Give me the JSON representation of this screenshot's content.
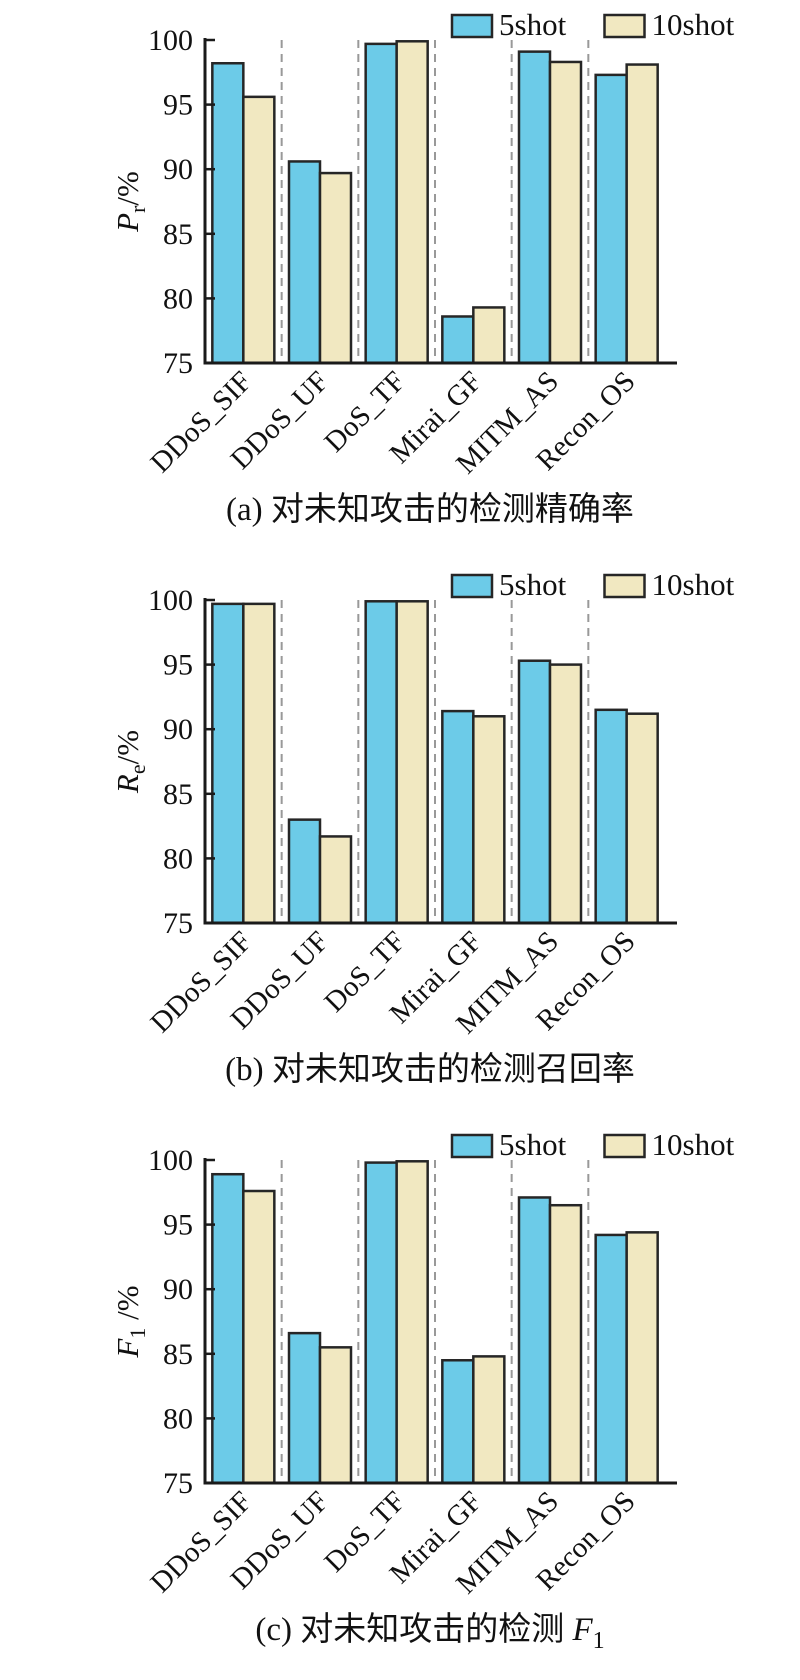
{
  "page": {
    "background": "#ffffff",
    "text_color": "#111111"
  },
  "style": {
    "bar_stroke": "#262626",
    "axis_color": "#1a1a1a",
    "separator_color": "#999999",
    "series_colors": {
      "5shot": "#6CCBE8",
      "10shot": "#F1E8C1"
    }
  },
  "legend": {
    "items": [
      {
        "label": "5shot",
        "color": "#6CCBE8"
      },
      {
        "label": "10shot",
        "color": "#F1E8C1"
      }
    ]
  },
  "chart_data": [
    {
      "id": "a",
      "type": "bar",
      "title": "(a) 对未知攻击的检测精确率",
      "title_math": null,
      "ylabel": {
        "base": "P",
        "sub": "r",
        "suffix": "/%"
      },
      "ylim": [
        75,
        100
      ],
      "yticks": [
        75,
        80,
        85,
        90,
        95,
        100
      ],
      "grid": "dashed-vertical-separators",
      "legend_position": "top-right",
      "categories": [
        "DDoS_SIF",
        "DDoS_UF",
        "DoS_TF",
        "Mirai_GF",
        "MITM_AS",
        "Recon_OS"
      ],
      "series": [
        {
          "name": "5shot",
          "values": [
            98.2,
            90.6,
            99.7,
            78.6,
            99.1,
            97.3
          ]
        },
        {
          "name": "10shot",
          "values": [
            95.6,
            89.7,
            99.9,
            79.3,
            98.3,
            98.1
          ]
        }
      ]
    },
    {
      "id": "b",
      "type": "bar",
      "title": "(b) 对未知攻击的检测召回率",
      "title_math": null,
      "ylabel": {
        "base": "R",
        "sub": "e",
        "suffix": "/%"
      },
      "ylim": [
        75,
        100
      ],
      "yticks": [
        75,
        80,
        85,
        90,
        95,
        100
      ],
      "grid": "dashed-vertical-separators",
      "legend_position": "top-right",
      "categories": [
        "DDoS_SIF",
        "DDoS_UF",
        "DoS_TF",
        "Mirai_GF",
        "MITM_AS",
        "Recon_OS"
      ],
      "series": [
        {
          "name": "5shot",
          "values": [
            99.7,
            83.0,
            99.9,
            91.4,
            95.3,
            91.5
          ]
        },
        {
          "name": "10shot",
          "values": [
            99.7,
            81.7,
            99.9,
            91.0,
            95.0,
            91.2
          ]
        }
      ]
    },
    {
      "id": "c",
      "type": "bar",
      "title": "(c) 对未知攻击的检测 ",
      "title_math": {
        "base": "F",
        "sub": "1"
      },
      "ylabel": {
        "base": "F",
        "sub": "1",
        "suffix": " /%"
      },
      "ylim": [
        75,
        100
      ],
      "yticks": [
        75,
        80,
        85,
        90,
        95,
        100
      ],
      "grid": "dashed-vertical-separators",
      "legend_position": "top-right",
      "categories": [
        "DDoS_SIF",
        "DDoS_UF",
        "DoS_TF",
        "Mirai_GF",
        "MITM_AS",
        "Recon_OS"
      ],
      "series": [
        {
          "name": "5shot",
          "values": [
            98.9,
            86.6,
            99.8,
            84.5,
            97.1,
            94.2
          ]
        },
        {
          "name": "10shot",
          "values": [
            97.6,
            85.5,
            99.9,
            84.8,
            96.5,
            94.4
          ]
        }
      ]
    }
  ]
}
